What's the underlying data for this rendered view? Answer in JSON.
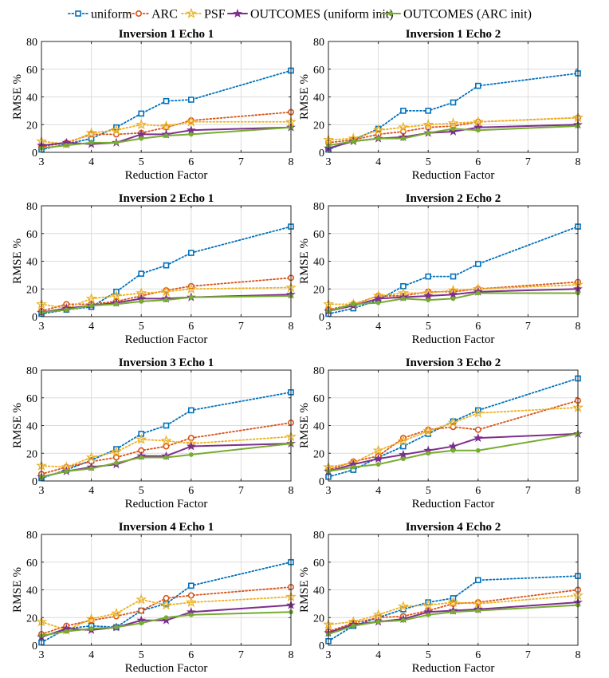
{
  "legend": {
    "entries": [
      {
        "label": "uniform",
        "color": "#0072BD",
        "marker": "square",
        "line": "dotted"
      },
      {
        "label": "ARC",
        "color": "#D95319",
        "marker": "circle",
        "line": "dotted"
      },
      {
        "label": "PSF",
        "color": "#EDB120",
        "marker": "star",
        "line": "dotted"
      },
      {
        "label": "OUTCOMES (uniform init)",
        "color": "#7E2F8E",
        "marker": "star-filled",
        "line": "solid"
      },
      {
        "label": "OUTCOMES (ARC init)",
        "color": "#77AC30",
        "marker": "dot",
        "line": "solid"
      }
    ]
  },
  "chart_data": [
    {
      "type": "line",
      "title": "Inversion 1   Echo 1",
      "xlabel": "Reduction Factor",
      "ylabel": "RMSE %",
      "xlim": [
        3,
        8
      ],
      "ylim": [
        0,
        80
      ],
      "xticks": [
        3,
        4,
        5,
        6,
        7,
        8
      ],
      "yticks": [
        0,
        20,
        40,
        60,
        80
      ],
      "grid": true,
      "x": [
        3,
        3.5,
        4,
        4.5,
        5,
        5.5,
        6,
        8
      ],
      "series": [
        {
          "name": "uniform",
          "values": [
            2,
            6,
            10,
            18,
            28,
            37,
            38,
            59
          ]
        },
        {
          "name": "ARC",
          "values": [
            4,
            7,
            13,
            13,
            14,
            18,
            23,
            29
          ]
        },
        {
          "name": "PSF",
          "values": [
            8,
            6,
            14,
            16,
            20,
            19,
            22,
            22
          ]
        },
        {
          "name": "OUTCOMES (uniform init)",
          "values": [
            5,
            7,
            6,
            7,
            13,
            13,
            16,
            18
          ]
        },
        {
          "name": "OUTCOMES (ARC init)",
          "values": [
            3,
            5,
            7,
            7,
            10,
            12,
            13,
            18
          ]
        }
      ]
    },
    {
      "type": "line",
      "title": "Inversion 1   Echo 2",
      "xlabel": "Reduction Factor",
      "ylabel": "RMSE %",
      "xlim": [
        3,
        8
      ],
      "ylim": [
        0,
        80
      ],
      "xticks": [
        3,
        4,
        5,
        6,
        7,
        8
      ],
      "yticks": [
        0,
        20,
        40,
        60,
        80
      ],
      "grid": true,
      "x": [
        3,
        3.5,
        4,
        4.5,
        5,
        5.5,
        6,
        8
      ],
      "series": [
        {
          "name": "uniform",
          "values": [
            2,
            9,
            17,
            30,
            30,
            36,
            48,
            57
          ]
        },
        {
          "name": "ARC",
          "values": [
            7,
            9,
            13,
            15,
            18,
            19,
            22,
            25
          ]
        },
        {
          "name": "PSF",
          "values": [
            9,
            10,
            16,
            18,
            20,
            21,
            22,
            25
          ]
        },
        {
          "name": "OUTCOMES (uniform init)",
          "values": [
            3,
            8,
            10,
            11,
            14,
            15,
            18,
            20
          ]
        },
        {
          "name": "OUTCOMES (ARC init)",
          "values": [
            5,
            8,
            10,
            10,
            14,
            17,
            16,
            19
          ]
        }
      ]
    },
    {
      "type": "line",
      "title": "Inversion 2   Echo 1",
      "xlabel": "Reduction Factor",
      "ylabel": "RMSE %",
      "xlim": [
        3,
        8
      ],
      "ylim": [
        0,
        80
      ],
      "xticks": [
        3,
        4,
        5,
        6,
        7,
        8
      ],
      "yticks": [
        0,
        20,
        40,
        60,
        80
      ],
      "grid": true,
      "x": [
        3,
        3.5,
        4,
        4.5,
        5,
        5.5,
        6,
        8
      ],
      "series": [
        {
          "name": "uniform",
          "values": [
            2,
            5,
            7,
            18,
            31,
            37,
            46,
            65
          ]
        },
        {
          "name": "ARC",
          "values": [
            4,
            9,
            9,
            11,
            15,
            19,
            22,
            28
          ]
        },
        {
          "name": "PSF",
          "values": [
            9,
            6,
            13,
            15,
            17,
            18,
            20,
            21
          ]
        },
        {
          "name": "OUTCOMES (uniform init)",
          "values": [
            3,
            6,
            8,
            10,
            13,
            13,
            14,
            16
          ]
        },
        {
          "name": "OUTCOMES (ARC init)",
          "values": [
            3,
            5,
            8,
            9,
            11,
            12,
            14,
            15
          ]
        }
      ]
    },
    {
      "type": "line",
      "title": "Inversion 2   Echo 2",
      "xlabel": "Reduction Factor",
      "ylabel": "RMSE %",
      "xlim": [
        3,
        8
      ],
      "ylim": [
        0,
        80
      ],
      "xticks": [
        3,
        4,
        5,
        6,
        7,
        8
      ],
      "yticks": [
        0,
        20,
        40,
        60,
        80
      ],
      "grid": true,
      "x": [
        3,
        3.5,
        4,
        4.5,
        5,
        5.5,
        6,
        8
      ],
      "series": [
        {
          "name": "uniform",
          "values": [
            2,
            6,
            12,
            22,
            29,
            29,
            38,
            65
          ]
        },
        {
          "name": "ARC",
          "values": [
            5,
            9,
            15,
            15,
            18,
            18,
            20,
            25
          ]
        },
        {
          "name": "PSF",
          "values": [
            9,
            9,
            15,
            17,
            17,
            19,
            20,
            23
          ]
        },
        {
          "name": "OUTCOMES (uniform init)",
          "values": [
            4,
            8,
            13,
            14,
            15,
            16,
            18,
            20
          ]
        },
        {
          "name": "OUTCOMES (ARC init)",
          "values": [
            4,
            9,
            10,
            13,
            12,
            13,
            17,
            17
          ]
        }
      ]
    },
    {
      "type": "line",
      "title": "Inversion 3   Echo 1",
      "xlabel": "Reduction Factor",
      "ylabel": "RMSE %",
      "xlim": [
        3,
        8
      ],
      "ylim": [
        0,
        80
      ],
      "xticks": [
        3,
        4,
        5,
        6,
        7,
        8
      ],
      "yticks": [
        0,
        20,
        40,
        60,
        80
      ],
      "grid": true,
      "x": [
        3,
        3.5,
        4,
        4.5,
        5,
        5.5,
        6,
        8
      ],
      "series": [
        {
          "name": "uniform",
          "values": [
            2,
            8,
            15,
            23,
            34,
            40,
            51,
            64
          ]
        },
        {
          "name": "ARC",
          "values": [
            5,
            10,
            14,
            17,
            22,
            25,
            31,
            42
          ]
        },
        {
          "name": "PSF",
          "values": [
            11,
            10,
            17,
            21,
            30,
            29,
            27,
            32
          ]
        },
        {
          "name": "OUTCOMES (uniform init)",
          "values": [
            3,
            7,
            10,
            12,
            18,
            18,
            25,
            27
          ]
        },
        {
          "name": "OUTCOMES (ARC init)",
          "values": [
            3,
            7,
            9,
            13,
            17,
            17,
            19,
            27
          ]
        }
      ]
    },
    {
      "type": "line",
      "title": "Inversion 3   Echo 2",
      "xlabel": "Reduction Factor",
      "ylabel": "RMSE %",
      "xlim": [
        3,
        8
      ],
      "ylim": [
        0,
        80
      ],
      "xticks": [
        3,
        4,
        5,
        6,
        7,
        8
      ],
      "yticks": [
        0,
        20,
        40,
        60,
        80
      ],
      "grid": true,
      "x": [
        3,
        3.5,
        4,
        4.5,
        5,
        5.5,
        6,
        8
      ],
      "series": [
        {
          "name": "uniform",
          "values": [
            3,
            8,
            17,
            25,
            34,
            43,
            51,
            74
          ]
        },
        {
          "name": "ARC",
          "values": [
            8,
            14,
            18,
            31,
            37,
            39,
            37,
            58
          ]
        },
        {
          "name": "PSF",
          "values": [
            10,
            13,
            22,
            29,
            36,
            42,
            49,
            53
          ]
        },
        {
          "name": "OUTCOMES (uniform init)",
          "values": [
            7,
            12,
            16,
            19,
            22,
            25,
            31,
            34
          ]
        },
        {
          "name": "OUTCOMES (ARC init)",
          "values": [
            7,
            10,
            12,
            16,
            20,
            22,
            22,
            34
          ]
        }
      ]
    },
    {
      "type": "line",
      "title": "Inversion 4   Echo 1",
      "xlabel": "Reduction Factor",
      "ylabel": "RMSE %",
      "xlim": [
        3,
        8
      ],
      "ylim": [
        0,
        80
      ],
      "xticks": [
        3,
        4,
        5,
        6,
        7,
        8
      ],
      "yticks": [
        0,
        20,
        40,
        60,
        80
      ],
      "grid": true,
      "x": [
        3,
        3.5,
        4,
        4.5,
        5,
        5.5,
        6,
        8
      ],
      "series": [
        {
          "name": "uniform",
          "values": [
            2,
            12,
            14,
            13,
            25,
            30,
            43,
            60
          ]
        },
        {
          "name": "ARC",
          "values": [
            8,
            14,
            18,
            21,
            25,
            34,
            36,
            42
          ]
        },
        {
          "name": "PSF",
          "values": [
            17,
            11,
            19,
            23,
            33,
            29,
            31,
            35
          ]
        },
        {
          "name": "OUTCOMES (uniform init)",
          "values": [
            6,
            12,
            11,
            13,
            18,
            18,
            24,
            29
          ]
        },
        {
          "name": "OUTCOMES (ARC init)",
          "values": [
            7,
            10,
            12,
            13,
            16,
            20,
            22,
            24
          ]
        }
      ]
    },
    {
      "type": "line",
      "title": "Inversion 4   Echo 2",
      "xlabel": "Reduction Factor",
      "ylabel": "RMSE %",
      "xlim": [
        3,
        8
      ],
      "ylim": [
        0,
        80
      ],
      "xticks": [
        3,
        4,
        5,
        6,
        7,
        8
      ],
      "yticks": [
        0,
        20,
        40,
        60,
        80
      ],
      "grid": true,
      "x": [
        3,
        3.5,
        4,
        4.5,
        5,
        5.5,
        6,
        8
      ],
      "series": [
        {
          "name": "uniform",
          "values": [
            3,
            14,
            20,
            26,
            31,
            34,
            47,
            50
          ]
        },
        {
          "name": "ARC",
          "values": [
            10,
            16,
            20,
            21,
            25,
            30,
            31,
            40
          ]
        },
        {
          "name": "PSF",
          "values": [
            15,
            17,
            22,
            28,
            29,
            31,
            30,
            36
          ]
        },
        {
          "name": "OUTCOMES (uniform init)",
          "values": [
            9,
            15,
            17,
            19,
            24,
            25,
            26,
            31
          ]
        },
        {
          "name": "OUTCOMES (ARC init)",
          "values": [
            8,
            14,
            17,
            18,
            22,
            24,
            25,
            29
          ]
        }
      ]
    }
  ]
}
